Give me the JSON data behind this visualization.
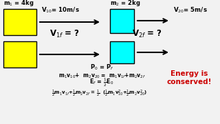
{
  "bg_color": "#f2f2f2",
  "yellow_color": "#ffff00",
  "cyan_color": "#00ffff",
  "text_color": "#000000",
  "red_color": "#cc0000",
  "fig_w": 3.2,
  "fig_h": 1.8,
  "dpi": 100
}
